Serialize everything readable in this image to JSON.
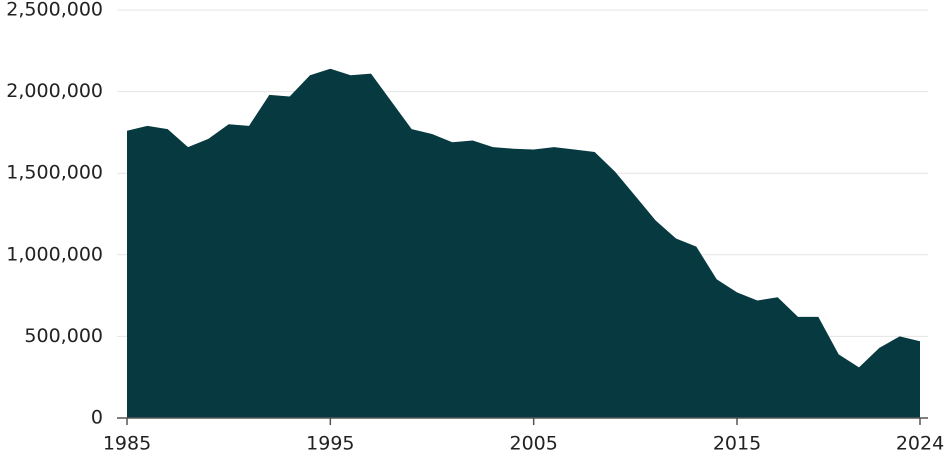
{
  "chart_data": {
    "type": "area",
    "color": "#063a40",
    "grid": true,
    "x": [
      1985,
      1986,
      1987,
      1988,
      1989,
      1990,
      1991,
      1992,
      1993,
      1994,
      1995,
      1996,
      1997,
      1998,
      1999,
      2000,
      2001,
      2002,
      2003,
      2004,
      2005,
      2006,
      2007,
      2008,
      2009,
      2010,
      2011,
      2012,
      2013,
      2014,
      2015,
      2016,
      2017,
      2018,
      2019,
      2020,
      2021,
      2022,
      2023,
      2024
    ],
    "values": [
      1760000,
      1790000,
      1770000,
      1660000,
      1710000,
      1800000,
      1790000,
      1980000,
      1970000,
      2100000,
      2140000,
      2100000,
      2110000,
      1940000,
      1770000,
      1740000,
      1690000,
      1700000,
      1660000,
      1650000,
      1645000,
      1660000,
      1645000,
      1630000,
      1510000,
      1360000,
      1210000,
      1100000,
      1050000,
      850000,
      770000,
      720000,
      740000,
      620000,
      620000,
      390000,
      310000,
      430000,
      500000,
      470000
    ],
    "xlim": [
      1985,
      2024
    ],
    "xticks": [
      1985,
      1995,
      2005,
      2015,
      2024
    ],
    "ylim": [
      0,
      2500000
    ],
    "yticks": [
      0,
      {
        "value": 500000,
        "label": "500,000"
      },
      {
        "value": 1000000,
        "label": "1,000,000"
      },
      {
        "value": 1500000,
        "label": "1,500,000"
      },
      {
        "value": 2000000,
        "label": "2,000,000"
      },
      {
        "value": 2500000,
        "label": "2,500,000"
      }
    ]
  }
}
